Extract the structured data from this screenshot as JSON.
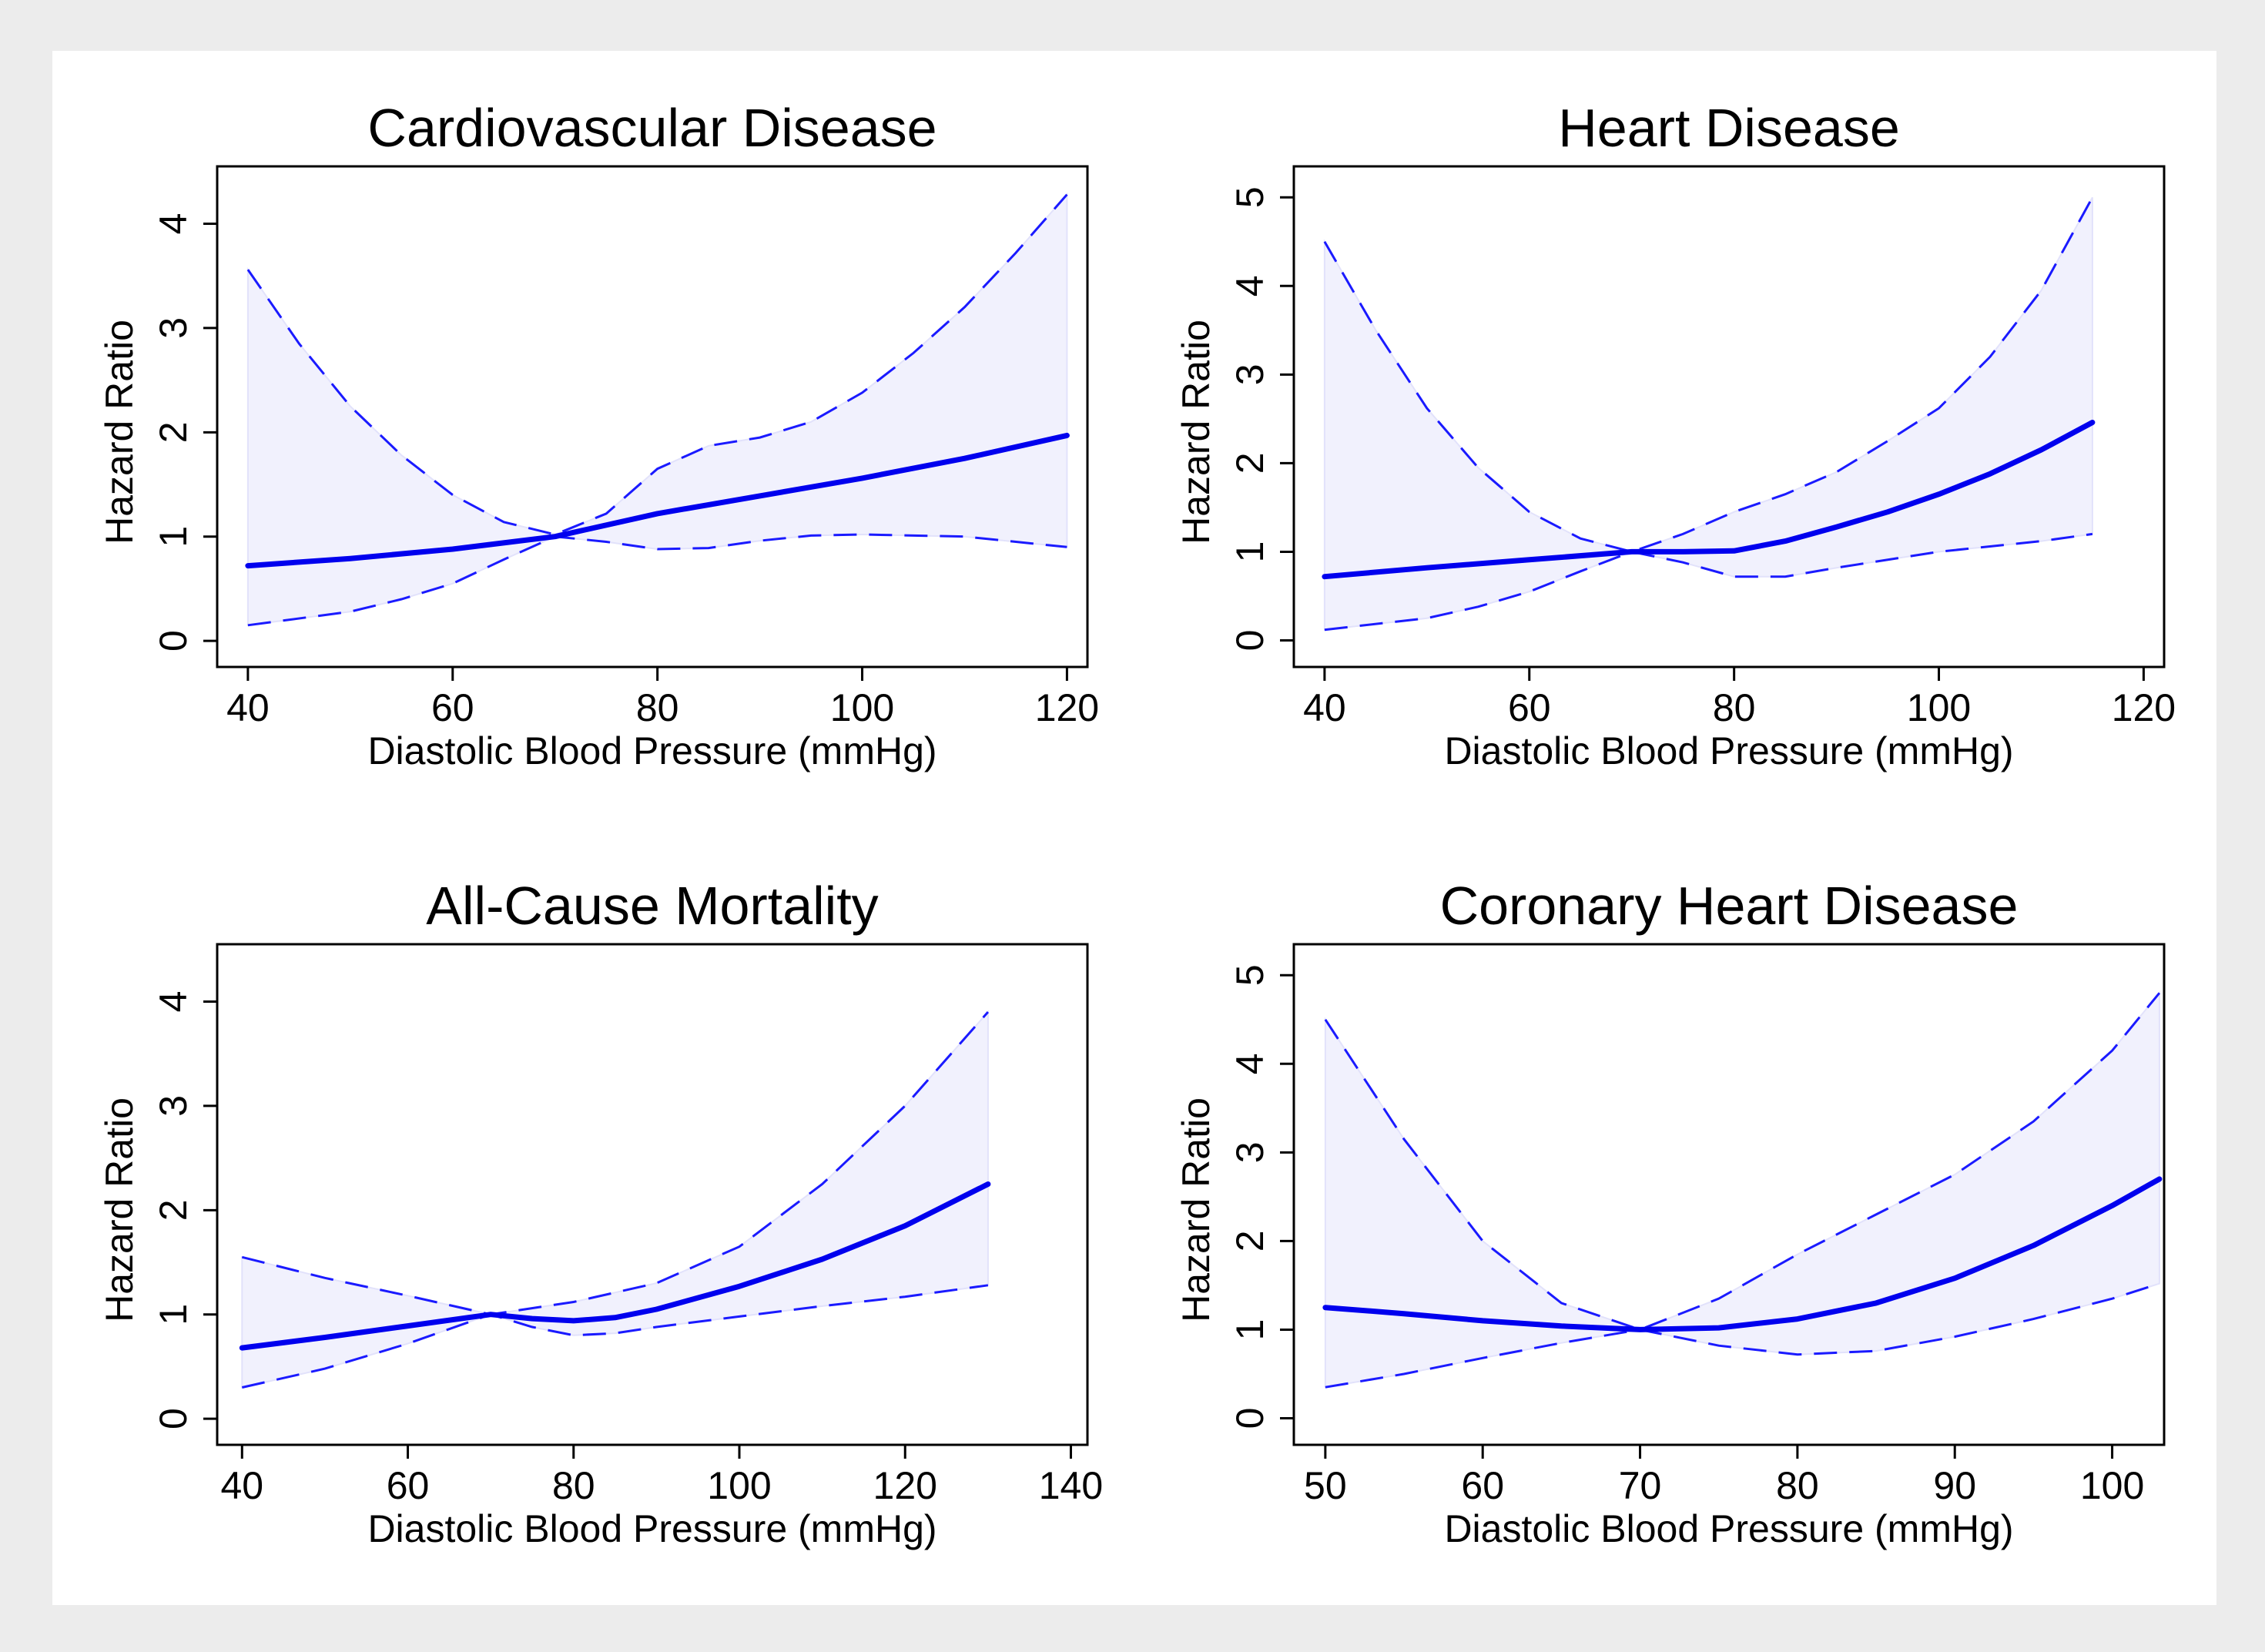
{
  "chart_data": [
    {
      "type": "line",
      "title": "Cardiovascular Disease",
      "xlabel": "Diastolic Blood Pressure (mmHg)",
      "ylabel": "Hazard Ratio",
      "xlim": [
        37,
        122
      ],
      "ylim": [
        -0.25,
        4.55
      ],
      "xticks": [
        40,
        60,
        80,
        100,
        120
      ],
      "yticks": [
        0,
        1,
        2,
        3,
        4
      ],
      "grid": false,
      "series": [
        {
          "name": "Hazard Ratio",
          "style": "solid",
          "x": [
            40,
            50,
            60,
            70,
            80,
            90,
            100,
            110,
            120
          ],
          "y": [
            0.72,
            0.79,
            0.88,
            1.0,
            1.22,
            1.39,
            1.56,
            1.75,
            1.97
          ]
        },
        {
          "name": "95% CI upper",
          "style": "dashed",
          "x": [
            40,
            45,
            50,
            55,
            60,
            65,
            70,
            75,
            80,
            85,
            90,
            95,
            100,
            105,
            110,
            115,
            120
          ],
          "y": [
            3.56,
            2.85,
            2.25,
            1.78,
            1.4,
            1.14,
            1.02,
            1.22,
            1.65,
            1.87,
            1.95,
            2.1,
            2.38,
            2.76,
            3.2,
            3.72,
            4.28
          ]
        },
        {
          "name": "95% CI lower",
          "style": "dashed",
          "x": [
            40,
            50,
            55,
            60,
            65,
            70,
            75,
            80,
            85,
            90,
            95,
            100,
            110,
            120
          ],
          "y": [
            0.15,
            0.28,
            0.4,
            0.55,
            0.78,
            1.0,
            0.95,
            0.88,
            0.89,
            0.96,
            1.01,
            1.02,
            1.0,
            0.9
          ]
        }
      ]
    },
    {
      "type": "line",
      "title": "Heart Disease",
      "xlabel": "Diastolic Blood Pressure (mmHg)",
      "ylabel": "Hazard Ratio",
      "xlim": [
        37,
        122
      ],
      "ylim": [
        -0.3,
        5.35
      ],
      "xticks": [
        40,
        60,
        80,
        100,
        120
      ],
      "yticks": [
        0,
        1,
        2,
        3,
        4,
        5
      ],
      "grid": false,
      "series": [
        {
          "name": "Hazard Ratio",
          "style": "solid",
          "x": [
            40,
            50,
            60,
            70,
            75,
            80,
            85,
            90,
            95,
            100,
            105,
            110,
            115
          ],
          "y": [
            0.72,
            0.82,
            0.91,
            1.0,
            1.0,
            1.01,
            1.12,
            1.28,
            1.45,
            1.65,
            1.88,
            2.15,
            2.46
          ]
        },
        {
          "name": "95% CI upper",
          "style": "dashed",
          "x": [
            40,
            45,
            50,
            55,
            60,
            65,
            70,
            75,
            80,
            85,
            90,
            95,
            100,
            105,
            110,
            115
          ],
          "y": [
            4.5,
            3.5,
            2.62,
            1.95,
            1.45,
            1.15,
            1.0,
            1.2,
            1.45,
            1.65,
            1.9,
            2.25,
            2.62,
            3.2,
            3.95,
            5.0
          ]
        },
        {
          "name": "95% CI lower",
          "style": "dashed",
          "x": [
            40,
            50,
            55,
            60,
            65,
            70,
            75,
            80,
            85,
            90,
            100,
            110,
            115
          ],
          "y": [
            0.12,
            0.25,
            0.38,
            0.55,
            0.78,
            1.0,
            0.88,
            0.72,
            0.72,
            0.82,
            1.0,
            1.12,
            1.2
          ]
        }
      ]
    },
    {
      "type": "line",
      "title": "All-Cause Mortality",
      "xlabel": "Diastolic Blood Pressure (mmHg)",
      "ylabel": "Hazard Ratio",
      "xlim": [
        37,
        142
      ],
      "ylim": [
        -0.25,
        4.55
      ],
      "xticks": [
        40,
        60,
        80,
        100,
        120,
        140
      ],
      "yticks": [
        0,
        1,
        2,
        3,
        4
      ],
      "grid": false,
      "series": [
        {
          "name": "Hazard Ratio",
          "style": "solid",
          "x": [
            40,
            50,
            60,
            70,
            75,
            80,
            85,
            90,
            100,
            110,
            120,
            130
          ],
          "y": [
            0.68,
            0.78,
            0.89,
            1.0,
            0.96,
            0.94,
            0.97,
            1.05,
            1.27,
            1.53,
            1.85,
            2.25
          ]
        },
        {
          "name": "95% CI upper",
          "style": "dashed",
          "x": [
            40,
            50,
            60,
            70,
            80,
            90,
            100,
            110,
            120,
            130
          ],
          "y": [
            1.55,
            1.35,
            1.18,
            1.0,
            1.12,
            1.3,
            1.65,
            2.25,
            3.0,
            3.9
          ]
        },
        {
          "name": "95% CI lower",
          "style": "dashed",
          "x": [
            40,
            50,
            60,
            70,
            75,
            80,
            85,
            90,
            100,
            110,
            120,
            130
          ],
          "y": [
            0.3,
            0.48,
            0.72,
            1.0,
            0.88,
            0.8,
            0.82,
            0.88,
            0.98,
            1.08,
            1.17,
            1.28
          ]
        }
      ]
    },
    {
      "type": "line",
      "title": "Coronary Heart Disease",
      "xlabel": "Diastolic Blood Pressure (mmHg)",
      "ylabel": "Hazard Ratio",
      "xlim": [
        48,
        103.3
      ],
      "ylim": [
        -0.3,
        5.35
      ],
      "xticks": [
        50,
        60,
        70,
        80,
        90,
        100
      ],
      "yticks": [
        0,
        1,
        2,
        3,
        4,
        5
      ],
      "grid": false,
      "series": [
        {
          "name": "Hazard Ratio",
          "style": "solid",
          "x": [
            50,
            55,
            60,
            65,
            70,
            75,
            80,
            85,
            90,
            95,
            100,
            103
          ],
          "y": [
            1.25,
            1.18,
            1.1,
            1.04,
            1.0,
            1.02,
            1.12,
            1.3,
            1.58,
            1.95,
            2.4,
            2.7
          ]
        },
        {
          "name": "95% CI upper",
          "style": "dashed",
          "x": [
            50,
            55,
            60,
            65,
            70,
            75,
            80,
            85,
            90,
            95,
            100,
            103
          ],
          "y": [
            4.5,
            3.15,
            2.0,
            1.3,
            1.0,
            1.35,
            1.85,
            2.3,
            2.75,
            3.35,
            4.15,
            4.8
          ]
        },
        {
          "name": "95% CI lower",
          "style": "dashed",
          "x": [
            50,
            55,
            60,
            65,
            70,
            75,
            80,
            85,
            90,
            95,
            100,
            103
          ],
          "y": [
            0.35,
            0.5,
            0.68,
            0.85,
            1.0,
            0.82,
            0.72,
            0.76,
            0.92,
            1.12,
            1.35,
            1.52
          ]
        }
      ]
    }
  ]
}
